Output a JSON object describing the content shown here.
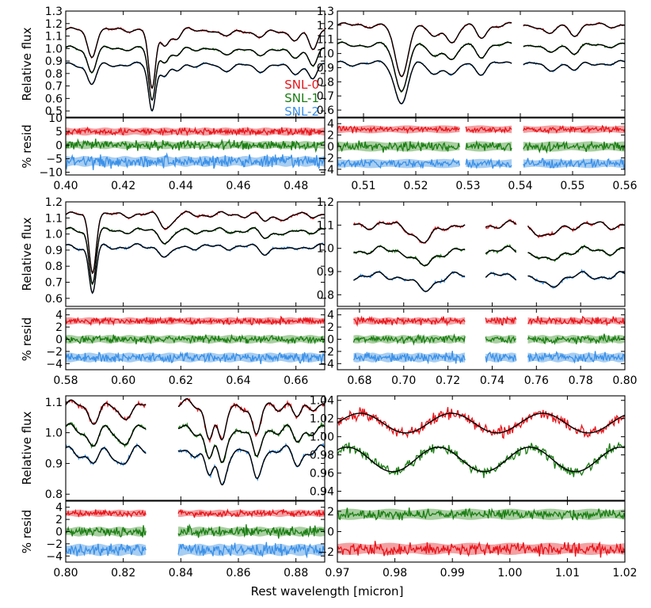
{
  "colors": {
    "snl0": "#e8141a",
    "snl1": "#1a7d12",
    "snl2": "#3a90e8",
    "model": "#000000",
    "band0": "#f4a0a2",
    "band1": "#a8cfa0",
    "band2": "#a6cdf2"
  },
  "figure": {
    "xlabel": "Rest wavelength [micron]",
    "ylabel_flux": "Relative flux",
    "ylabel_resid": "% resid",
    "legend": [
      "SNL-0",
      "SNL-1",
      "SNL-2"
    ]
  },
  "chart_data": [
    {
      "type": "line",
      "panel": "flux",
      "xlim": [
        0.4,
        0.49
      ],
      "ylim": [
        0.45,
        1.3
      ],
      "xticks": [
        "0.40",
        "0.42",
        "0.44",
        "0.46",
        "0.48"
      ],
      "yticks": [
        "0.5",
        "0.6",
        "0.7",
        "0.8",
        "0.9",
        "1.0",
        "1.1",
        "1.2",
        "1.3"
      ],
      "ylabel": "Relative flux",
      "gaps": [],
      "series": [
        {
          "name": "SNL-0",
          "offset": 1.15
        },
        {
          "name": "SNL-1",
          "offset": 1.0
        },
        {
          "name": "SNL-2",
          "offset": 0.87
        }
      ],
      "features": [
        {
          "x": 0.409,
          "depth": 0.18,
          "width": 0.0015
        },
        {
          "x": 0.43,
          "depth": 0.42,
          "width": 0.0012
        },
        {
          "x": 0.4345,
          "depth": 0.1,
          "width": 0.0015
        },
        {
          "x": 0.4385,
          "depth": 0.06,
          "width": 0.0015
        },
        {
          "x": 0.455,
          "depth": 0.05,
          "width": 0.002
        },
        {
          "x": 0.467,
          "depth": 0.06,
          "width": 0.002
        },
        {
          "x": 0.4795,
          "depth": 0.08,
          "width": 0.002
        },
        {
          "x": 0.486,
          "depth": 0.12,
          "width": 0.0015
        }
      ]
    },
    {
      "type": "line",
      "panel": "resid",
      "xlim": [
        0.4,
        0.49
      ],
      "ylim": [
        -11,
        10
      ],
      "xticks": [
        "0.40",
        "0.42",
        "0.44",
        "0.46",
        "0.48"
      ],
      "yticks": [
        "-10",
        "-5",
        "0",
        "5",
        "10"
      ],
      "ylabel": "% resid",
      "gaps": [],
      "series": [
        {
          "name": "SNL-0",
          "offset": 5.0,
          "band": 1.5,
          "noise": 1.2
        },
        {
          "name": "SNL-1",
          "offset": 0.0,
          "band": 1.5,
          "noise": 1.8
        },
        {
          "name": "SNL-2",
          "offset": -6.0,
          "band": 2.0,
          "noise": 2.3
        }
      ]
    },
    {
      "type": "line",
      "panel": "flux",
      "xlim": [
        0.505,
        0.56
      ],
      "ylim": [
        0.55,
        1.3
      ],
      "xticks": [
        "0.51",
        "0.52",
        "0.53",
        "0.54",
        "0.55",
        "0.56"
      ],
      "yticks": [
        "0.6",
        "0.7",
        "0.8",
        "0.9",
        "1.0",
        "1.1",
        "1.2",
        "1.3"
      ],
      "ylabel": "",
      "gaps": [
        [
          0.5385,
          0.5405
        ]
      ],
      "series": [
        {
          "name": "SNL-0",
          "offset": 1.2
        },
        {
          "name": "SNL-1",
          "offset": 1.06
        },
        {
          "name": "SNL-2",
          "offset": 0.93
        }
      ],
      "features": [
        {
          "x": 0.5172,
          "depth": 0.3,
          "width": 0.0012
        },
        {
          "x": 0.5235,
          "depth": 0.08,
          "width": 0.001
        },
        {
          "x": 0.527,
          "depth": 0.1,
          "width": 0.001
        },
        {
          "x": 0.5325,
          "depth": 0.07,
          "width": 0.001
        },
        {
          "x": 0.5455,
          "depth": 0.06,
          "width": 0.001
        },
        {
          "x": 0.5505,
          "depth": 0.05,
          "width": 0.001
        }
      ]
    },
    {
      "type": "line",
      "panel": "resid",
      "xlim": [
        0.505,
        0.56
      ],
      "ylim": [
        -5,
        5
      ],
      "xticks": [
        "0.51",
        "0.52",
        "0.53",
        "0.54",
        "0.55",
        "0.56"
      ],
      "yticks": [
        "-4",
        "-2",
        "0",
        "2",
        "4"
      ],
      "ylabel": "",
      "gaps": [
        [
          0.5385,
          0.5405
        ],
        [
          0.5285,
          0.5295
        ]
      ],
      "series": [
        {
          "name": "SNL-0",
          "offset": 3.0,
          "band": 0.7,
          "noise": 0.5
        },
        {
          "name": "SNL-1",
          "offset": 0.0,
          "band": 0.9,
          "noise": 0.8
        },
        {
          "name": "SNL-2",
          "offset": -3.0,
          "band": 0.8,
          "noise": 0.7
        }
      ]
    },
    {
      "type": "line",
      "panel": "flux",
      "xlim": [
        0.58,
        0.67
      ],
      "ylim": [
        0.55,
        1.2
      ],
      "xticks": [
        "0.58",
        "0.60",
        "0.62",
        "0.64",
        "0.66"
      ],
      "yticks": [
        "0.6",
        "0.7",
        "0.8",
        "0.9",
        "1.0",
        "1.1",
        "1.2"
      ],
      "ylabel": "Relative flux",
      "gaps": [],
      "series": [
        {
          "name": "SNL-0",
          "offset": 1.12
        },
        {
          "name": "SNL-1",
          "offset": 1.02
        },
        {
          "name": "SNL-2",
          "offset": 0.92
        }
      ],
      "features": [
        {
          "x": 0.5893,
          "depth": 0.31,
          "width": 0.0012
        },
        {
          "x": 0.6142,
          "depth": 0.05,
          "width": 0.0015
        },
        {
          "x": 0.6165,
          "depth": 0.04,
          "width": 0.0015
        },
        {
          "x": 0.6495,
          "depth": 0.04,
          "width": 0.0015
        },
        {
          "x": 0.6565,
          "depth": 0.03,
          "width": 0.0015
        }
      ]
    },
    {
      "type": "line",
      "panel": "resid",
      "xlim": [
        0.58,
        0.67
      ],
      "ylim": [
        -5,
        5
      ],
      "xticks": [
        "0.58",
        "0.60",
        "0.62",
        "0.64",
        "0.66"
      ],
      "yticks": [
        "-4",
        "-2",
        "0",
        "2",
        "4"
      ],
      "ylabel": "% resid",
      "gaps": [],
      "series": [
        {
          "name": "SNL-0",
          "offset": 3.0,
          "band": 0.6,
          "noise": 0.5
        },
        {
          "name": "SNL-1",
          "offset": 0.0,
          "band": 0.7,
          "noise": 0.6
        },
        {
          "name": "SNL-2",
          "offset": -3.0,
          "band": 0.8,
          "noise": 0.8
        }
      ]
    },
    {
      "type": "line",
      "panel": "flux",
      "xlim": [
        0.67,
        0.8
      ],
      "ylim": [
        0.75,
        1.2
      ],
      "xticks": [
        "0.68",
        "0.70",
        "0.72",
        "0.74",
        "0.76",
        "0.78",
        "0.80"
      ],
      "yticks": [
        "0.8",
        "0.9",
        "1.0",
        "1.1",
        "1.2"
      ],
      "ylabel": "",
      "gaps": [
        [
          0.668,
          0.677
        ],
        [
          0.728,
          0.737
        ],
        [
          0.751,
          0.756
        ]
      ],
      "series": [
        {
          "name": "SNL-0",
          "offset": 1.1
        },
        {
          "name": "SNL-1",
          "offset": 0.99
        },
        {
          "name": "SNL-2",
          "offset": 0.88
        }
      ],
      "features": [
        {
          "x": 0.709,
          "depth": 0.07,
          "width": 0.004
        },
        {
          "x": 0.765,
          "depth": 0.05,
          "width": 0.004
        }
      ]
    },
    {
      "type": "line",
      "panel": "resid",
      "xlim": [
        0.67,
        0.8
      ],
      "ylim": [
        -5,
        5
      ],
      "xticks": [
        "0.68",
        "0.70",
        "0.72",
        "0.74",
        "0.76",
        "0.78",
        "0.80"
      ],
      "yticks": [
        "-4",
        "-2",
        "0",
        "2",
        "4"
      ],
      "ylabel": "",
      "gaps": [
        [
          0.668,
          0.677
        ],
        [
          0.728,
          0.737
        ],
        [
          0.751,
          0.756
        ]
      ],
      "series": [
        {
          "name": "SNL-0",
          "offset": 3.0,
          "band": 0.6,
          "noise": 0.6
        },
        {
          "name": "SNL-1",
          "offset": 0.0,
          "band": 0.7,
          "noise": 0.6
        },
        {
          "name": "SNL-2",
          "offset": -3.0,
          "band": 0.8,
          "noise": 0.8
        }
      ]
    },
    {
      "type": "line",
      "panel": "flux",
      "xlim": [
        0.8,
        0.89
      ],
      "ylim": [
        0.78,
        1.12
      ],
      "xticks": [
        "0.80",
        "0.82",
        "0.84",
        "0.86",
        "0.88"
      ],
      "yticks": [
        "0.8",
        "0.9",
        "1.0",
        "1.1"
      ],
      "ylabel": "Relative flux",
      "gaps": [
        [
          0.828,
          0.839
        ]
      ],
      "series": [
        {
          "name": "SNL-0",
          "offset": 1.09
        },
        {
          "name": "SNL-1",
          "offset": 1.01
        },
        {
          "name": "SNL-2",
          "offset": 0.94
        }
      ],
      "features": [
        {
          "x": 0.8095,
          "depth": 0.04,
          "width": 0.002
        },
        {
          "x": 0.8195,
          "depth": 0.04,
          "width": 0.002
        },
        {
          "x": 0.8498,
          "depth": 0.09,
          "width": 0.0014
        },
        {
          "x": 0.8542,
          "depth": 0.12,
          "width": 0.0014
        },
        {
          "x": 0.8662,
          "depth": 0.1,
          "width": 0.0014
        },
        {
          "x": 0.8806,
          "depth": 0.04,
          "width": 0.0015
        }
      ]
    },
    {
      "type": "line",
      "panel": "resid",
      "xlim": [
        0.8,
        0.89
      ],
      "ylim": [
        -5,
        5
      ],
      "xticks": [
        "0.80",
        "0.82",
        "0.84",
        "0.86",
        "0.88"
      ],
      "yticks": [
        "-4",
        "-2",
        "0",
        "2",
        "4"
      ],
      "ylabel": "% resid",
      "gaps": [
        [
          0.828,
          0.839
        ]
      ],
      "series": [
        {
          "name": "SNL-0",
          "offset": 3.0,
          "band": 0.6,
          "noise": 0.5
        },
        {
          "name": "SNL-1",
          "offset": 0.0,
          "band": 0.8,
          "noise": 0.8
        },
        {
          "name": "SNL-2",
          "offset": -3.0,
          "band": 1.0,
          "noise": 1.0
        }
      ]
    },
    {
      "type": "line",
      "panel": "flux",
      "xlim": [
        0.97,
        1.02
      ],
      "ylim": [
        0.93,
        1.045
      ],
      "xticks": [
        "0.97",
        "0.98",
        "0.99",
        "1.00",
        "1.01",
        "1.02"
      ],
      "yticks": [
        "0.94",
        "0.96",
        "0.98",
        "1.00",
        "1.02",
        "1.04"
      ],
      "ylabel": "",
      "gaps": [],
      "series": [
        {
          "name": "SNL-0",
          "offset": 1.015,
          "wave": 0.012
        },
        {
          "name": "SNL-1",
          "offset": 0.975,
          "wave": 0.015
        }
      ],
      "features": []
    },
    {
      "type": "line",
      "panel": "resid",
      "xlim": [
        0.97,
        1.02
      ],
      "ylim": [
        -3,
        3
      ],
      "xticks": [
        "0.97",
        "0.98",
        "0.99",
        "1.00",
        "1.01",
        "1.02"
      ],
      "yticks": [
        "-2",
        "0",
        "2"
      ],
      "ylabel": "",
      "gaps": [],
      "series": [
        {
          "name": "SNL-1",
          "offset": 1.7,
          "band": 0.55,
          "noise": 0.5
        },
        {
          "name": "SNL-0",
          "offset": -1.7,
          "band": 0.6,
          "noise": 0.6
        }
      ]
    }
  ]
}
